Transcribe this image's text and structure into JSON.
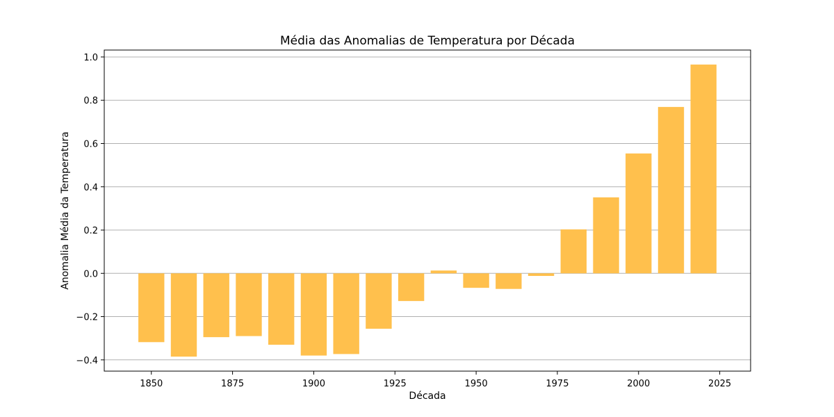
{
  "chart_data": {
    "type": "bar",
    "title": "Média das Anomalias de Temperatura por Década",
    "xlabel": "Década",
    "ylabel": "Anomalia Média da Temperatura",
    "x": [
      1850,
      1860,
      1870,
      1880,
      1890,
      1900,
      1910,
      1920,
      1930,
      1940,
      1950,
      1960,
      1970,
      1980,
      1990,
      2000,
      2010,
      2020
    ],
    "values": [
      -0.318,
      -0.385,
      -0.295,
      -0.29,
      -0.33,
      -0.38,
      -0.373,
      -0.256,
      -0.128,
      0.013,
      -0.067,
      -0.072,
      -0.012,
      0.203,
      0.351,
      0.554,
      0.769,
      0.965
    ],
    "xticks": [
      1850,
      1875,
      1900,
      1925,
      1950,
      1975,
      2000,
      2025
    ],
    "yticks": [
      -0.4,
      -0.2,
      0.0,
      0.2,
      0.4,
      0.6,
      0.8,
      1.0
    ],
    "xlim": [
      1835.5,
      2034.5
    ],
    "ylim": [
      -0.452,
      1.032
    ],
    "grid": "y",
    "bar_color": "#ffc04d"
  }
}
